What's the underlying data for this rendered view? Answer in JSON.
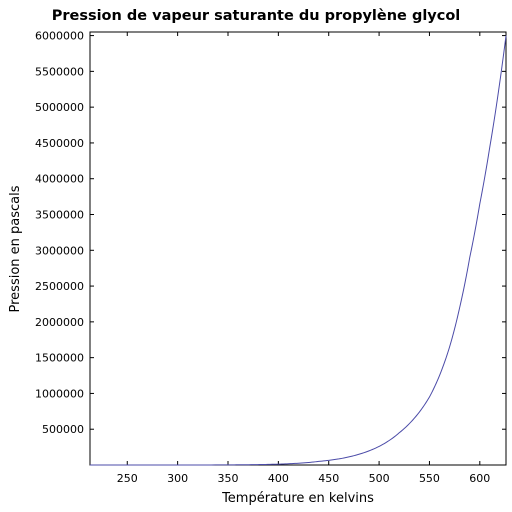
{
  "chart_data": {
    "type": "line",
    "title": "Pression de vapeur saturante du propylène glycol",
    "xlabel": "Température en kelvins",
    "ylabel": "Pression en pascals",
    "xlim": [
      213,
      626
    ],
    "ylim": [
      0,
      6050000
    ],
    "xticks": [
      250,
      300,
      350,
      400,
      450,
      500,
      550,
      600
    ],
    "yticks": [
      500000,
      1000000,
      1500000,
      2000000,
      2500000,
      3000000,
      3500000,
      4000000,
      4500000,
      5000000,
      5500000,
      6000000
    ],
    "grid": false,
    "line_color": "#4b4ba8",
    "series": [
      {
        "x": [
          213,
          250,
          300,
          350,
          375,
          400,
          420,
          440,
          460,
          480,
          500,
          520,
          540,
          550,
          560,
          570,
          580,
          590,
          600,
          610,
          626
        ],
        "values": [
          0,
          0,
          100,
          2000,
          5000,
          12000,
          25000,
          50000,
          85000,
          150000,
          260000,
          450000,
          740000,
          950000,
          1250000,
          1650000,
          2200000,
          2900000,
          3650000,
          4450000,
          6000000
        ]
      }
    ]
  }
}
